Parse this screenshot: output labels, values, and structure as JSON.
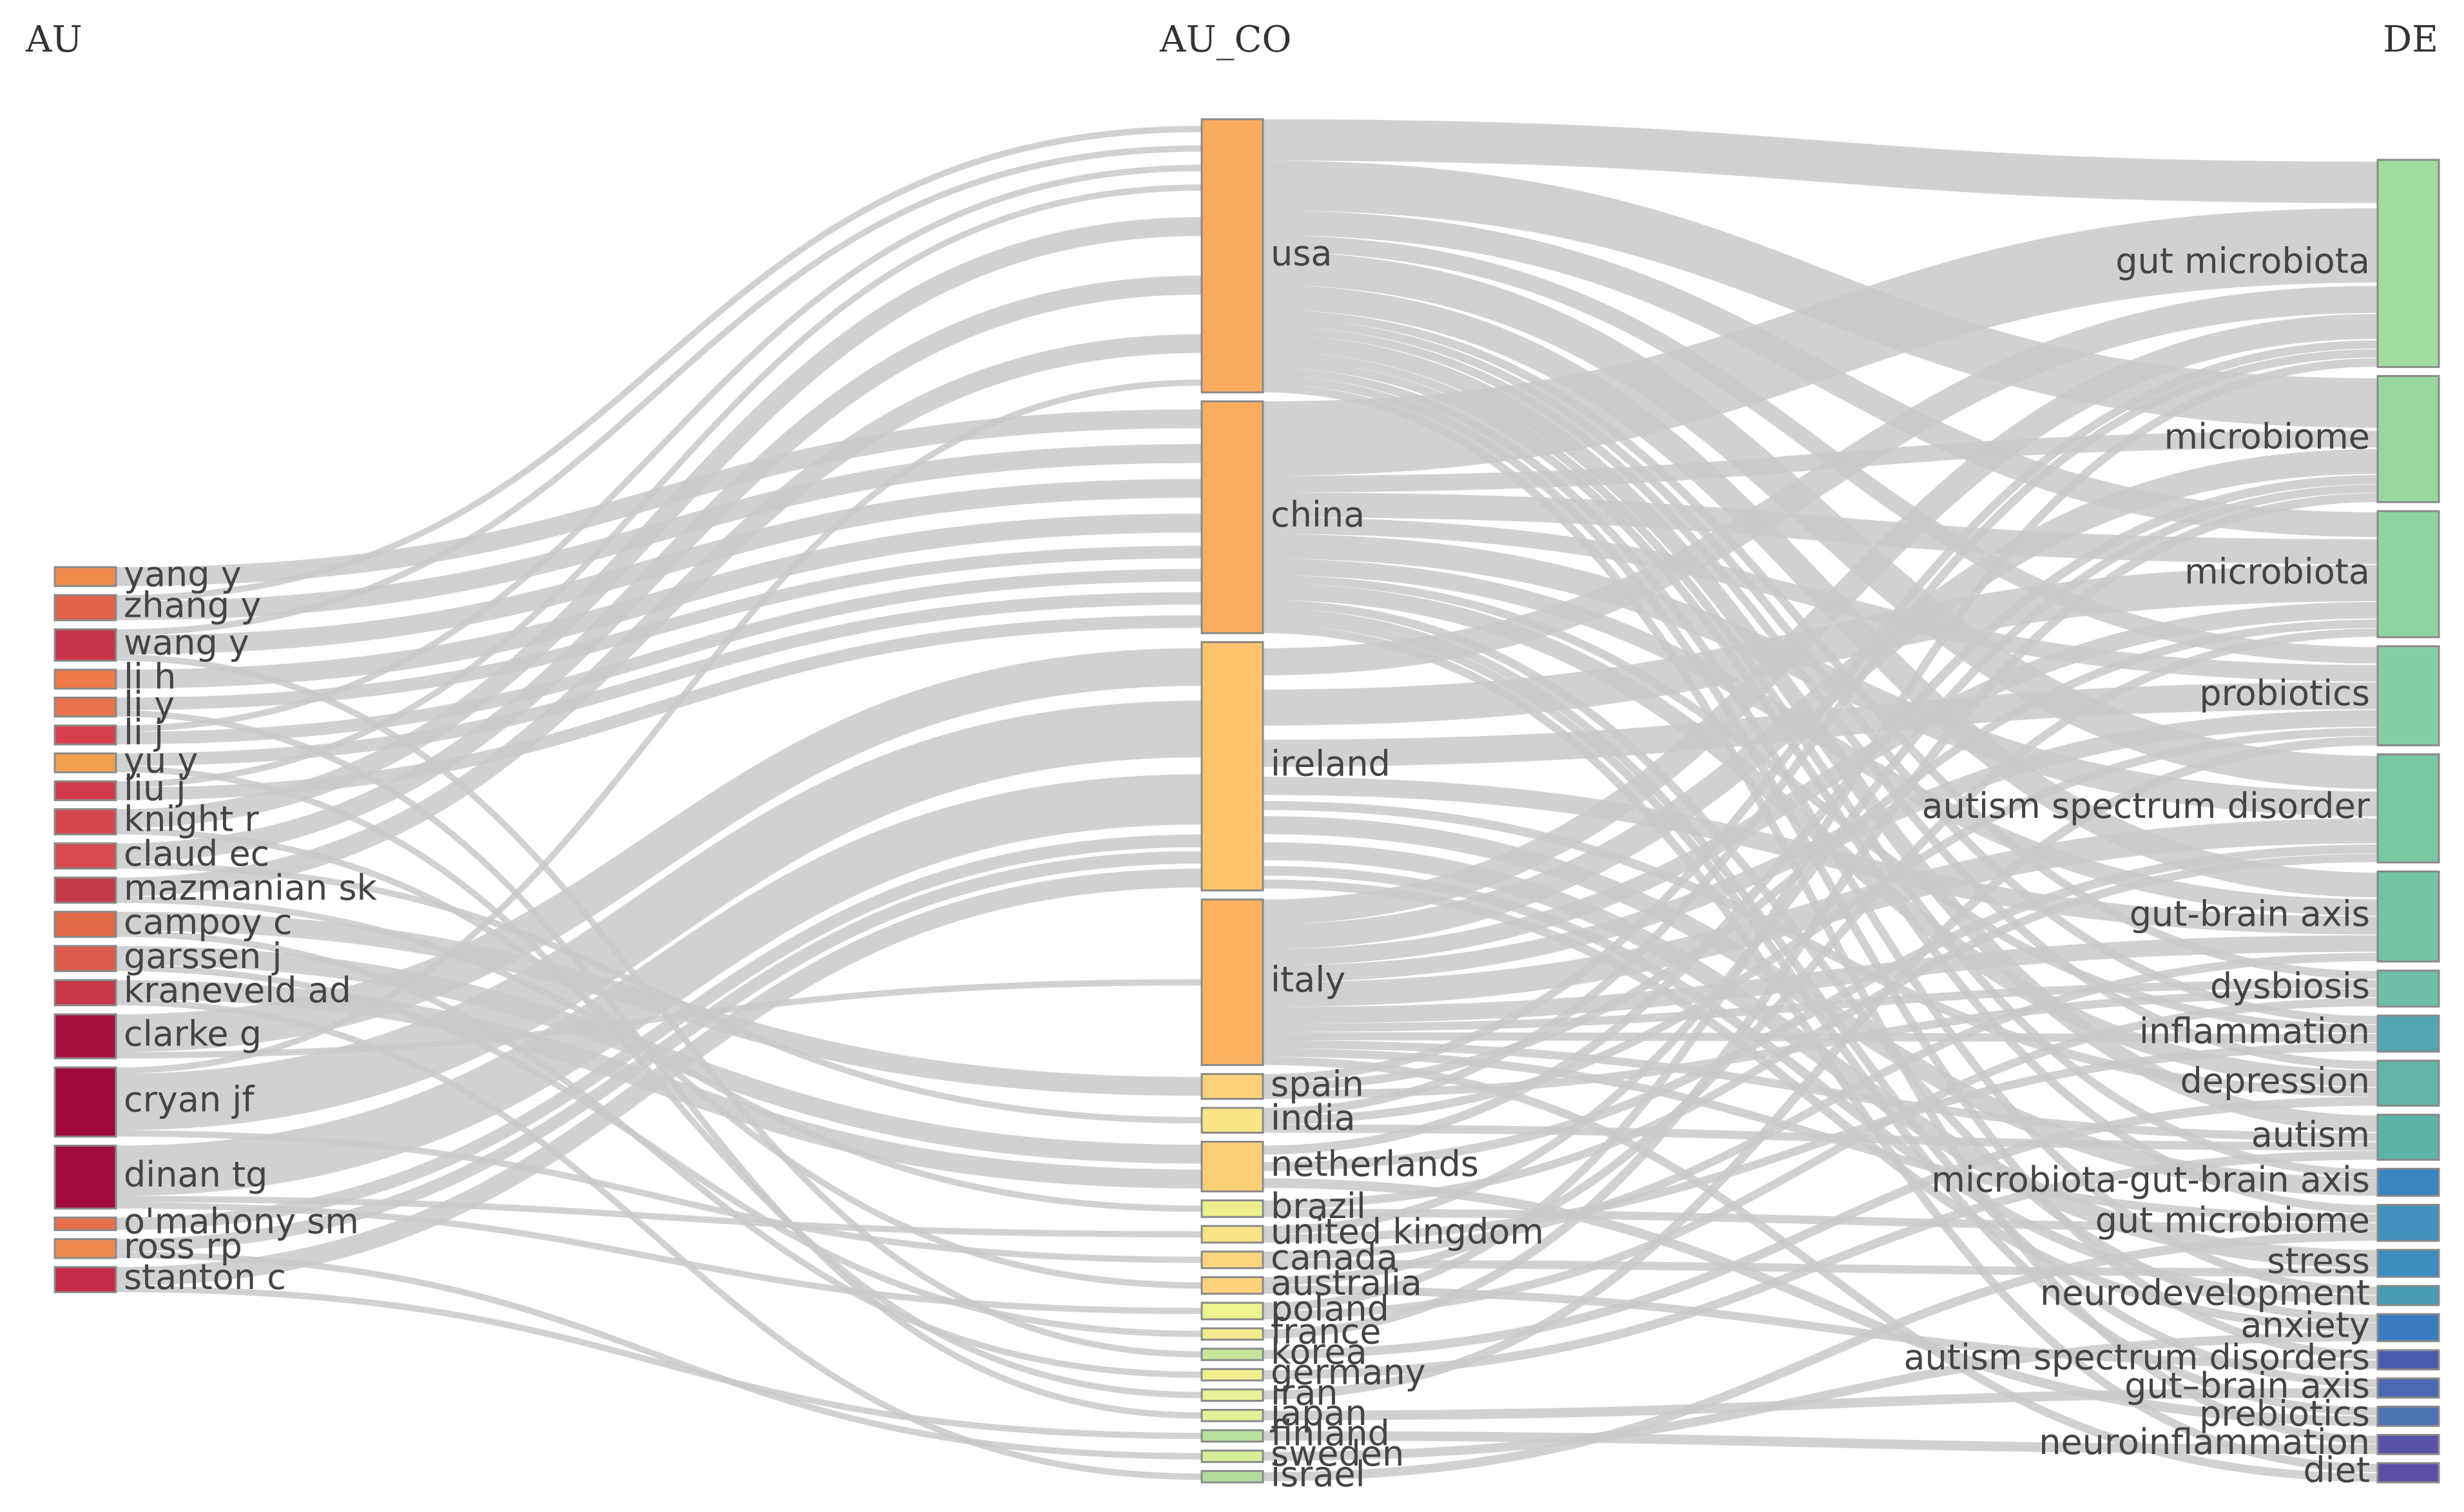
{
  "columns": {
    "au": "AU",
    "au_co": "AU_CO",
    "de": "DE"
  },
  "au_nodes": [
    {
      "id": "yang y",
      "label": "yang y",
      "color": "#f08a4b"
    },
    {
      "id": "zhang y",
      "label": "zhang y",
      "color": "#e0604a"
    },
    {
      "id": "wang y",
      "label": "wang y",
      "color": "#c8344a"
    },
    {
      "id": "li h",
      "label": "li h",
      "color": "#f07a48"
    },
    {
      "id": "li y",
      "label": "li y",
      "color": "#e8734a"
    },
    {
      "id": "li j",
      "label": "li j",
      "color": "#d6404c"
    },
    {
      "id": "yu y",
      "label": "yu y",
      "color": "#f0a050"
    },
    {
      "id": "liu j",
      "label": "liu j",
      "color": "#d03a4c"
    },
    {
      "id": "knight r",
      "label": "knight r",
      "color": "#d4474d"
    },
    {
      "id": "claud ec",
      "label": "claud ec",
      "color": "#d84a4c"
    },
    {
      "id": "mazmanian sk",
      "label": "mazmanian sk",
      "color": "#c43a4a"
    },
    {
      "id": "campoy c",
      "label": "campoy c",
      "color": "#e26a4a"
    },
    {
      "id": "garssen j",
      "label": "garssen j",
      "color": "#dc5a4a"
    },
    {
      "id": "kraneveld ad",
      "label": "kraneveld ad",
      "color": "#c8384a"
    },
    {
      "id": "clarke g",
      "label": "clarke g",
      "color": "#a8103f"
    },
    {
      "id": "cryan jf",
      "label": "cryan jf",
      "color": "#9e0a3c"
    },
    {
      "id": "dinan tg",
      "label": "dinan tg",
      "color": "#a30d3e"
    },
    {
      "id": "o'mahony sm",
      "label": "o'mahony sm",
      "color": "#e6704a"
    },
    {
      "id": "ross rp",
      "label": "ross rp",
      "color": "#ec8a4e"
    },
    {
      "id": "stanton c",
      "label": "stanton c",
      "color": "#c42a48"
    }
  ],
  "au_co_nodes": [
    {
      "id": "usa",
      "label": "usa",
      "color": "#fbab5e"
    },
    {
      "id": "china",
      "label": "china",
      "color": "#fbae60"
    },
    {
      "id": "ireland",
      "label": "ireland",
      "color": "#fcc46c"
    },
    {
      "id": "italy",
      "label": "italy",
      "color": "#fbb160"
    },
    {
      "id": "spain",
      "label": "spain",
      "color": "#fcd17a"
    },
    {
      "id": "india",
      "label": "india",
      "color": "#f8e585"
    },
    {
      "id": "netherlands",
      "label": "netherlands",
      "color": "#fcce76"
    },
    {
      "id": "brazil",
      "label": "brazil",
      "color": "#eef08e"
    },
    {
      "id": "united kingdom",
      "label": "united kingdom",
      "color": "#f8e285"
    },
    {
      "id": "canada",
      "label": "canada",
      "color": "#fdd57c"
    },
    {
      "id": "australia",
      "label": "australia",
      "color": "#fdd27a"
    },
    {
      "id": "poland",
      "label": "poland",
      "color": "#eef490"
    },
    {
      "id": "france",
      "label": "france",
      "color": "#f4ec8c"
    },
    {
      "id": "korea",
      "label": "korea",
      "color": "#c6e49a"
    },
    {
      "id": "germany",
      "label": "germany",
      "color": "#f2ee8e"
    },
    {
      "id": "iran",
      "label": "iran",
      "color": "#e8f298"
    },
    {
      "id": "japan",
      "label": "japan",
      "color": "#e4f09a"
    },
    {
      "id": "finland",
      "label": "finland",
      "color": "#b8e09e"
    },
    {
      "id": "sweden",
      "label": "sweden",
      "color": "#d8ec9a"
    },
    {
      "id": "israel",
      "label": "israel",
      "color": "#b2dc9c"
    }
  ],
  "de_nodes": [
    {
      "id": "gut microbiota",
      "label": "gut microbiota",
      "color": "#a2dc9e"
    },
    {
      "id": "microbiome",
      "label": "microbiome",
      "color": "#98d89e"
    },
    {
      "id": "microbiota",
      "label": "microbiota",
      "color": "#8dd4a0"
    },
    {
      "id": "probiotics",
      "label": "probiotics",
      "color": "#84d0a2"
    },
    {
      "id": "autism spectrum disorder",
      "label": "autism spectrum disorder",
      "color": "#78c8a4"
    },
    {
      "id": "gut-brain axis",
      "label": "gut-brain axis",
      "color": "#74c4a4"
    },
    {
      "id": "dysbiosis",
      "label": "dysbiosis",
      "color": "#6cbea6"
    },
    {
      "id": "inflammation",
      "label": "inflammation",
      "color": "#52a6b2"
    },
    {
      "id": "depression",
      "label": "depression",
      "color": "#62b6a8"
    },
    {
      "id": "autism",
      "label": "autism",
      "color": "#5cb4a8"
    },
    {
      "id": "microbiota-gut-brain axis",
      "label": "microbiota-gut-brain axis",
      "color": "#3a86c0"
    },
    {
      "id": "gut microbiome",
      "label": "gut microbiome",
      "color": "#4290bc"
    },
    {
      "id": "stress",
      "label": "stress",
      "color": "#3c8cc0"
    },
    {
      "id": "neurodevelopment",
      "label": "neurodevelopment",
      "color": "#489cb6"
    },
    {
      "id": "anxiety",
      "label": "anxiety",
      "color": "#3a7cc2"
    },
    {
      "id": "autism spectrum disorders",
      "label": "autism spectrum disorders",
      "color": "#4a5cae"
    },
    {
      "id": "gut-brain axis 2",
      "label": "gut–brain axis",
      "color": "#4c68b2"
    },
    {
      "id": "prebiotics",
      "label": "prebiotics",
      "color": "#4e74b6"
    },
    {
      "id": "neuroinflammation",
      "label": "neuroinflammation",
      "color": "#5a52a6"
    },
    {
      "id": "diet",
      "label": "diet",
      "color": "#5d4ea4"
    }
  ],
  "links": [
    {
      "source": "yang y",
      "target": "china",
      "value": 3
    },
    {
      "source": "zhang y",
      "target": "china",
      "value": 3
    },
    {
      "source": "wang y",
      "target": "china",
      "value": 3
    },
    {
      "source": "li h",
      "target": "china",
      "value": 3
    },
    {
      "source": "li y",
      "target": "china",
      "value": 2
    },
    {
      "source": "li j",
      "target": "china",
      "value": 2
    },
    {
      "source": "yu y",
      "target": "china",
      "value": 2
    },
    {
      "source": "liu j",
      "target": "china",
      "value": 2
    },
    {
      "source": "zhang y",
      "target": "usa",
      "value": 1
    },
    {
      "source": "wang y",
      "target": "usa",
      "value": 1
    },
    {
      "source": "li j",
      "target": "usa",
      "value": 1
    },
    {
      "source": "liu j",
      "target": "usa",
      "value": 1
    },
    {
      "source": "knight r",
      "target": "usa",
      "value": 3
    },
    {
      "source": "claud ec",
      "target": "usa",
      "value": 3
    },
    {
      "source": "mazmanian sk",
      "target": "usa",
      "value": 3
    },
    {
      "source": "campoy c",
      "target": "spain",
      "value": 3
    },
    {
      "source": "garssen j",
      "target": "netherlands",
      "value": 3
    },
    {
      "source": "kraneveld ad",
      "target": "netherlands",
      "value": 3
    },
    {
      "source": "clarke g",
      "target": "ireland",
      "value": 6
    },
    {
      "source": "cryan jf",
      "target": "ireland",
      "value": 9
    },
    {
      "source": "dinan tg",
      "target": "ireland",
      "value": 8
    },
    {
      "source": "o'mahony sm",
      "target": "ireland",
      "value": 2
    },
    {
      "source": "ross rp",
      "target": "ireland",
      "value": 2
    },
    {
      "source": "stanton c",
      "target": "ireland",
      "value": 3
    },
    {
      "source": "cryan jf",
      "target": "usa",
      "value": 1
    },
    {
      "source": "dinan tg",
      "target": "united kingdom",
      "value": 1
    },
    {
      "source": "cryan jf",
      "target": "canada",
      "value": 1
    },
    {
      "source": "clarke g",
      "target": "italy",
      "value": 1
    },
    {
      "source": "knight r",
      "target": "australia",
      "value": 1
    },
    {
      "source": "garssen j",
      "target": "france",
      "value": 1
    },
    {
      "source": "campoy c",
      "target": "germany",
      "value": 1
    },
    {
      "source": "wang y",
      "target": "korea",
      "value": 1
    },
    {
      "source": "li y",
      "target": "japan",
      "value": 1
    },
    {
      "source": "yu y",
      "target": "iran",
      "value": 1
    },
    {
      "source": "kraneveld ad",
      "target": "israel",
      "value": 1
    },
    {
      "source": "stanton c",
      "target": "finland",
      "value": 1
    },
    {
      "source": "ross rp",
      "target": "sweden",
      "value": 1
    },
    {
      "source": "dinan tg",
      "target": "poland",
      "value": 1
    },
    {
      "source": "mazmanian sk",
      "target": "brazil",
      "value": 1
    },
    {
      "source": "claud ec",
      "target": "india",
      "value": 1
    },
    {
      "source": "usa",
      "target": "gut microbiota",
      "value": 5
    },
    {
      "source": "usa",
      "target": "microbiome",
      "value": 6
    },
    {
      "source": "usa",
      "target": "microbiota",
      "value": 3
    },
    {
      "source": "usa",
      "target": "probiotics",
      "value": 2
    },
    {
      "source": "usa",
      "target": "autism spectrum disorder",
      "value": 4
    },
    {
      "source": "usa",
      "target": "gut-brain axis",
      "value": 3
    },
    {
      "source": "usa",
      "target": "dysbiosis",
      "value": 1
    },
    {
      "source": "usa",
      "target": "inflammation",
      "value": 1
    },
    {
      "source": "usa",
      "target": "depression",
      "value": 1
    },
    {
      "source": "usa",
      "target": "autism",
      "value": 2
    },
    {
      "source": "usa",
      "target": "microbiota-gut-brain axis",
      "value": 1
    },
    {
      "source": "usa",
      "target": "gut microbiome",
      "value": 1
    },
    {
      "source": "usa",
      "target": "neurodevelopment",
      "value": 1
    },
    {
      "source": "usa",
      "target": "autism spectrum disorders",
      "value": 1
    },
    {
      "source": "usa",
      "target": "neuroinflammation",
      "value": 1
    },
    {
      "source": "china",
      "target": "gut microbiota",
      "value": 9
    },
    {
      "source": "china",
      "target": "microbiome",
      "value": 2
    },
    {
      "source": "china",
      "target": "microbiota",
      "value": 3
    },
    {
      "source": "china",
      "target": "probiotics",
      "value": 2
    },
    {
      "source": "china",
      "target": "autism spectrum disorder",
      "value": 3
    },
    {
      "source": "china",
      "target": "gut-brain axis",
      "value": 2
    },
    {
      "source": "china",
      "target": "depression",
      "value": 2
    },
    {
      "source": "china",
      "target": "inflammation",
      "value": 1
    },
    {
      "source": "china",
      "target": "anxiety",
      "value": 1
    },
    {
      "source": "china",
      "target": "gut-brain axis 2",
      "value": 1
    },
    {
      "source": "china",
      "target": "prebiotics",
      "value": 1
    },
    {
      "source": "china",
      "target": "diet",
      "value": 1
    },
    {
      "source": "ireland",
      "target": "gut microbiota",
      "value": 3
    },
    {
      "source": "ireland",
      "target": "microbiota",
      "value": 4
    },
    {
      "source": "ireland",
      "target": "probiotics",
      "value": 3
    },
    {
      "source": "ireland",
      "target": "gut-brain axis",
      "value": 2
    },
    {
      "source": "ireland",
      "target": "stress",
      "value": 2
    },
    {
      "source": "ireland",
      "target": "microbiota-gut-brain axis",
      "value": 2
    },
    {
      "source": "ireland",
      "target": "depression",
      "value": 1
    },
    {
      "source": "ireland",
      "target": "anxiety",
      "value": 1
    },
    {
      "source": "ireland",
      "target": "neurodevelopment",
      "value": 1
    },
    {
      "source": "italy",
      "target": "gut microbiota",
      "value": 3
    },
    {
      "source": "italy",
      "target": "microbiome",
      "value": 3
    },
    {
      "source": "italy",
      "target": "microbiota",
      "value": 2
    },
    {
      "source": "italy",
      "target": "probiotics",
      "value": 2
    },
    {
      "source": "italy",
      "target": "autism spectrum disorder",
      "value": 3
    },
    {
      "source": "italy",
      "target": "gut-brain axis",
      "value": 2
    },
    {
      "source": "italy",
      "target": "dysbiosis",
      "value": 1
    },
    {
      "source": "italy",
      "target": "inflammation",
      "value": 1
    },
    {
      "source": "italy",
      "target": "autism",
      "value": 1
    },
    {
      "source": "italy",
      "target": "gut microbiome",
      "value": 1
    },
    {
      "source": "italy",
      "target": "diet",
      "value": 1
    },
    {
      "source": "spain",
      "target": "gut microbiota",
      "value": 1
    },
    {
      "source": "spain",
      "target": "microbiota",
      "value": 1
    },
    {
      "source": "spain",
      "target": "dysbiosis",
      "value": 1
    },
    {
      "source": "india",
      "target": "gut microbiota",
      "value": 1
    },
    {
      "source": "india",
      "target": "probiotics",
      "value": 1
    },
    {
      "source": "india",
      "target": "autism",
      "value": 1
    },
    {
      "source": "netherlands",
      "target": "microbiome",
      "value": 1
    },
    {
      "source": "netherlands",
      "target": "autism spectrum disorder",
      "value": 1
    },
    {
      "source": "netherlands",
      "target": "prebiotics",
      "value": 1
    },
    {
      "source": "brazil",
      "target": "autism spectrum disorder",
      "value": 1
    },
    {
      "source": "brazil",
      "target": "gut microbiome",
      "value": 1
    },
    {
      "source": "united kingdom",
      "target": "microbiome",
      "value": 1
    },
    {
      "source": "united kingdom",
      "target": "inflammation",
      "value": 1
    },
    {
      "source": "canada",
      "target": "gut-brain axis",
      "value": 1
    },
    {
      "source": "canada",
      "target": "stress",
      "value": 1
    },
    {
      "source": "australia",
      "target": "microbiota",
      "value": 1
    },
    {
      "source": "australia",
      "target": "autism spectrum disorders",
      "value": 1
    },
    {
      "source": "poland",
      "target": "gut microbiota",
      "value": 1
    },
    {
      "source": "poland",
      "target": "dysbiosis",
      "value": 1
    },
    {
      "source": "france",
      "target": "microbiome",
      "value": 1
    },
    {
      "source": "korea",
      "target": "depression",
      "value": 1
    },
    {
      "source": "germany",
      "target": "autism",
      "value": 1
    },
    {
      "source": "iran",
      "target": "probiotics",
      "value": 1
    },
    {
      "source": "japan",
      "target": "gut-brain axis 2",
      "value": 1
    },
    {
      "source": "finland",
      "target": "neuroinflammation",
      "value": 1
    },
    {
      "source": "sweden",
      "target": "anxiety",
      "value": 1
    },
    {
      "source": "israel",
      "target": "gut microbiome",
      "value": 1
    }
  ]
}
